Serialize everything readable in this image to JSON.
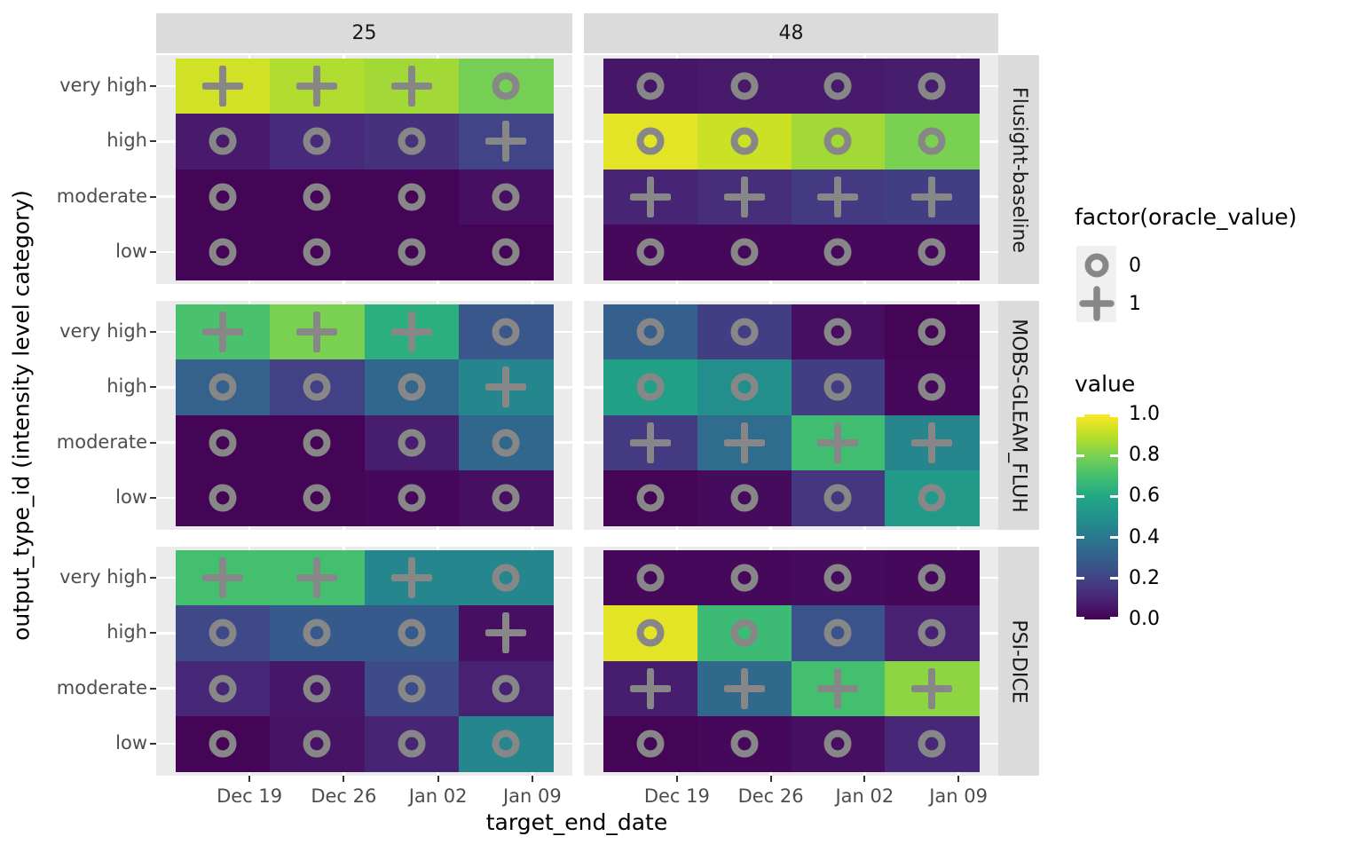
{
  "colors": {
    "background": "#ffffff",
    "panel_background": "#ebebeb",
    "strip_background": "#dbdbdb",
    "gridline": "#ffffff",
    "symbol_gray": "#878787",
    "axis_text": "#4d4d4d",
    "tick_mark": "#333333",
    "strip_text": "#1a1a1a",
    "legend_key_background": "#f0f0f0",
    "viridis_stops": [
      "#440154",
      "#482475",
      "#414487",
      "#355f8d",
      "#2a788e",
      "#21918c",
      "#22a884",
      "#44bf70",
      "#7ad151",
      "#bddf26",
      "#fde725"
    ]
  },
  "axes": {
    "x_title": "target_end_date",
    "y_title": "output_type_id (intensity level category)",
    "x_ticks": [
      "Dec 19",
      "Dec 26",
      "Jan 02",
      "Jan 09"
    ],
    "y_ticks": [
      "very high",
      "high",
      "moderate",
      "low"
    ]
  },
  "facets": {
    "col_labels": [
      "25",
      "48"
    ],
    "row_labels": [
      "Flusight-baseline",
      "MOBS-GLEAM_FLUH",
      "PSI-DICE"
    ]
  },
  "legend": {
    "shape_title": "factor(oracle_value)",
    "shape_items": [
      {
        "symbol": "circle",
        "label": "0"
      },
      {
        "symbol": "plus",
        "label": "1"
      }
    ],
    "color_title": "value",
    "colorbar_ticks": [
      {
        "label": "1.0",
        "value": 1.0
      },
      {
        "label": "0.8",
        "value": 0.8
      },
      {
        "label": "0.6",
        "value": 0.6
      },
      {
        "label": "0.4",
        "value": 0.4
      },
      {
        "label": "0.2",
        "value": 0.2
      },
      {
        "label": "0.0",
        "value": 0.0
      }
    ]
  },
  "chart_data": {
    "type": "heatmap",
    "x_categories": [
      "Dec 19",
      "Dec 26",
      "Jan 02",
      "Jan 09"
    ],
    "y_categories": [
      "very high",
      "high",
      "moderate",
      "low"
    ],
    "facet_columns": [
      "25",
      "48"
    ],
    "facet_rows": [
      "Flusight-baseline",
      "MOBS-GLEAM_FLUH",
      "PSI-DICE"
    ],
    "value_range": [
      0,
      1
    ],
    "color_scale": "viridis",
    "symbol_encoding": {
      "0": "circle",
      "1": "plus"
    },
    "panels": [
      {
        "facet_row": "Flusight-baseline",
        "facet_col": "25",
        "values": [
          [
            0.93,
            0.88,
            0.86,
            0.79
          ],
          [
            0.07,
            0.12,
            0.14,
            0.2
          ],
          [
            0.01,
            0.01,
            0.01,
            0.04
          ],
          [
            0.01,
            0.01,
            0.01,
            0.01
          ]
        ],
        "oracle": [
          [
            1,
            1,
            1,
            0
          ],
          [
            0,
            0,
            0,
            1
          ],
          [
            0,
            0,
            0,
            0
          ],
          [
            0,
            0,
            0,
            0
          ]
        ]
      },
      {
        "facet_row": "Flusight-baseline",
        "facet_col": "48",
        "values": [
          [
            0.06,
            0.07,
            0.07,
            0.08
          ],
          [
            0.96,
            0.92,
            0.86,
            0.8
          ],
          [
            0.1,
            0.13,
            0.17,
            0.18
          ],
          [
            0.02,
            0.02,
            0.02,
            0.02
          ]
        ],
        "oracle": [
          [
            0,
            0,
            0,
            0
          ],
          [
            0,
            0,
            0,
            0
          ],
          [
            1,
            1,
            1,
            1
          ],
          [
            0,
            0,
            0,
            0
          ]
        ]
      },
      {
        "facet_row": "MOBS-GLEAM_FLUH",
        "facet_col": "25",
        "values": [
          [
            0.71,
            0.8,
            0.63,
            0.27
          ],
          [
            0.31,
            0.19,
            0.33,
            0.46
          ],
          [
            0.01,
            0.01,
            0.08,
            0.33
          ],
          [
            0.01,
            0.01,
            0.02,
            0.04
          ]
        ],
        "oracle": [
          [
            1,
            1,
            1,
            0
          ],
          [
            0,
            0,
            0,
            1
          ],
          [
            0,
            0,
            0,
            0
          ],
          [
            0,
            0,
            0,
            0
          ]
        ]
      },
      {
        "facet_row": "MOBS-GLEAM_FLUH",
        "facet_col": "48",
        "values": [
          [
            0.3,
            0.18,
            0.04,
            0.01
          ],
          [
            0.56,
            0.49,
            0.18,
            0.02
          ],
          [
            0.17,
            0.35,
            0.69,
            0.45
          ],
          [
            0.01,
            0.03,
            0.16,
            0.54
          ]
        ],
        "oracle": [
          [
            0,
            0,
            0,
            0
          ],
          [
            0,
            0,
            0,
            0
          ],
          [
            1,
            1,
            1,
            1
          ],
          [
            0,
            0,
            0,
            0
          ]
        ]
      },
      {
        "facet_row": "PSI-DICE",
        "facet_col": "25",
        "values": [
          [
            0.7,
            0.7,
            0.46,
            0.46
          ],
          [
            0.22,
            0.28,
            0.28,
            0.04
          ],
          [
            0.11,
            0.06,
            0.23,
            0.09
          ],
          [
            0.01,
            0.05,
            0.1,
            0.46
          ]
        ],
        "oracle": [
          [
            1,
            1,
            1,
            0
          ],
          [
            0,
            0,
            0,
            1
          ],
          [
            0,
            0,
            0,
            0
          ],
          [
            0,
            0,
            0,
            0
          ]
        ]
      },
      {
        "facet_row": "PSI-DICE",
        "facet_col": "48",
        "values": [
          [
            0.02,
            0.02,
            0.03,
            0.02
          ],
          [
            0.96,
            0.68,
            0.26,
            0.09
          ],
          [
            0.08,
            0.34,
            0.7,
            0.83
          ],
          [
            0.01,
            0.02,
            0.04,
            0.11
          ]
        ],
        "oracle": [
          [
            0,
            0,
            0,
            0
          ],
          [
            0,
            0,
            0,
            0
          ],
          [
            1,
            1,
            1,
            1
          ],
          [
            0,
            0,
            0,
            0
          ]
        ]
      }
    ]
  }
}
